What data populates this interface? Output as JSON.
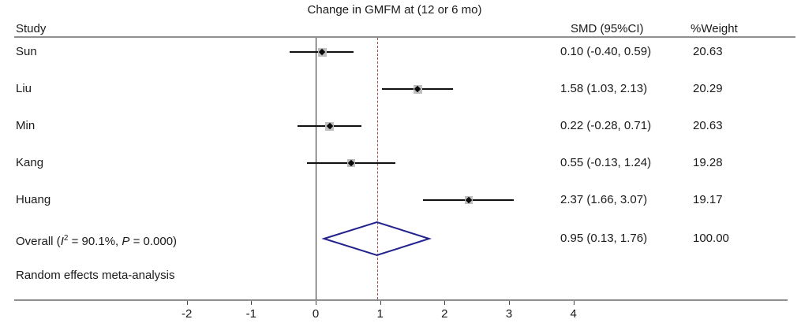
{
  "chart_data": {
    "type": "forest",
    "title": "Change in GMFM at (12 or 6 mo)",
    "columns": {
      "study": "Study",
      "smd": "SMD (95%CI)",
      "weight": "%Weight"
    },
    "studies": [
      {
        "name": "Sun",
        "smd": 0.1,
        "ci_low": -0.4,
        "ci_high": 0.59,
        "smd_label": "0.10 (-0.40, 0.59)",
        "weight": "20.63"
      },
      {
        "name": "Liu",
        "smd": 1.58,
        "ci_low": 1.03,
        "ci_high": 2.13,
        "smd_label": "1.58 (1.03, 2.13)",
        "weight": "20.29"
      },
      {
        "name": "Min",
        "smd": 0.22,
        "ci_low": -0.28,
        "ci_high": 0.71,
        "smd_label": "0.22 (-0.28, 0.71)",
        "weight": "20.63"
      },
      {
        "name": "Kang",
        "smd": 0.55,
        "ci_low": -0.13,
        "ci_high": 1.24,
        "smd_label": "0.55 (-0.13, 1.24)",
        "weight": "19.28"
      },
      {
        "name": "Huang",
        "smd": 2.37,
        "ci_low": 1.66,
        "ci_high": 3.07,
        "smd_label": "2.37 (1.66, 3.07)",
        "weight": "19.17"
      }
    ],
    "overall": {
      "label_parts": {
        "prefix": "Overall (",
        "i": "I",
        "i_sup": "2",
        "mid": " = 90.1%, ",
        "p": "P",
        "suffix": " = 0.000)"
      },
      "smd": 0.95,
      "ci_low": 0.13,
      "ci_high": 1.76,
      "smd_label": "0.95 (0.13, 1.76)",
      "weight": "100.00"
    },
    "note": "Random effects meta-analysis",
    "axis": {
      "tick_labels": [
        "-2",
        "-1",
        "0",
        "1",
        "2",
        "3",
        "4"
      ],
      "tick_values": [
        -2,
        -1,
        0,
        1,
        2,
        3,
        4
      ],
      "xlim": [
        -2.7,
        4.6
      ],
      "zero_line_value": 0,
      "ref_line_value": 0.95,
      "grid": false,
      "legend": "none"
    },
    "colors": {
      "diamond": "#22228c",
      "ref_line": "#9e5353",
      "axis_line": "#8f8f8f",
      "ci_line": "#111111",
      "marker_halo": "#bfbfbf",
      "text": "#1a1a1a"
    }
  }
}
